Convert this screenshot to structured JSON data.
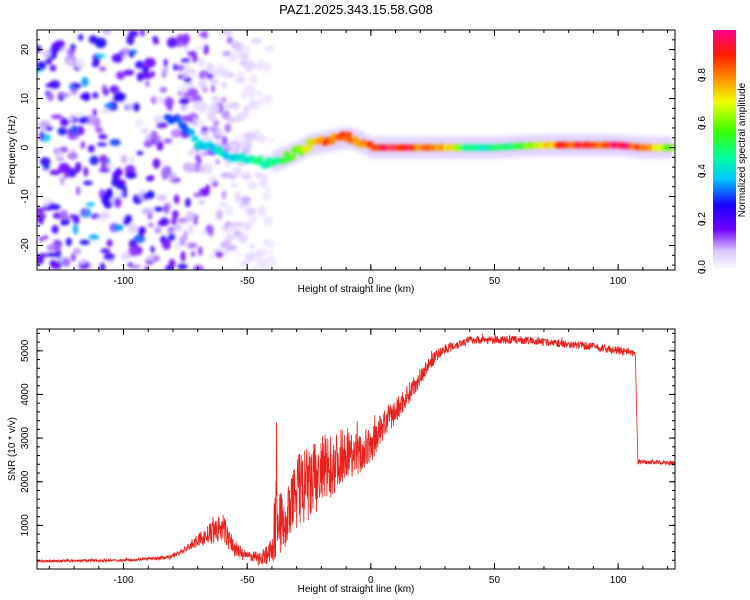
{
  "title": "PAZ1.2025.343.15.58.G08",
  "colorbar": {
    "label": "Normalized spectral amplitude",
    "ticks": [
      "0.0",
      "0.2",
      "0.4",
      "0.6",
      "0.8"
    ],
    "tick_values": [
      0.0,
      0.2,
      0.4,
      0.6,
      0.8
    ],
    "range": [
      0.0,
      1.0
    ]
  },
  "chart_data": [
    {
      "type": "heatmap",
      "name": "spectrogram",
      "xlabel": "Height of straight line (km)",
      "ylabel": "Frequency (Hz)",
      "xlim": [
        -135,
        123
      ],
      "ylim": [
        -25,
        24
      ],
      "xticks": [
        -100,
        -50,
        0,
        50,
        100
      ],
      "xtick_labels": [
        "-100",
        "-50",
        "0",
        "50",
        "100"
      ],
      "yticks": [
        -20,
        -10,
        0,
        10,
        20
      ],
      "ytick_labels": [
        "-20",
        "-10",
        "0",
        "10",
        "20"
      ],
      "ridge": {
        "x": [
          -80,
          -75,
          -70,
          -65,
          -60,
          -55,
          -50,
          -45,
          -40,
          -35,
          -30,
          -25,
          -20,
          -15,
          -10,
          -5,
          0,
          10,
          20,
          30,
          40,
          50,
          60,
          70,
          80,
          90,
          100,
          110,
          120
        ],
        "freq": [
          6,
          4,
          1,
          0,
          -1,
          -2,
          -2,
          -3,
          -3,
          -2,
          -1,
          0.5,
          1,
          1.5,
          2,
          1.5,
          0,
          0,
          0,
          0,
          0,
          0,
          0.3,
          0.5,
          0.5,
          0.5,
          0.5,
          0,
          0
        ],
        "amplitude": [
          0.3,
          0.35,
          0.45,
          0.4,
          0.45,
          0.4,
          0.45,
          0.5,
          0.55,
          0.55,
          0.6,
          0.7,
          0.85,
          0.9,
          0.9,
          0.85,
          0.95,
          0.95,
          0.9,
          0.8,
          0.5,
          0.5,
          0.55,
          0.75,
          0.95,
          0.95,
          0.95,
          0.9,
          0.6
        ]
      },
      "noise_region": [
        -135,
        -40
      ]
    },
    {
      "type": "line",
      "name": "snr",
      "xlabel": "Height of straight line (km)",
      "ylabel": "SNR (10 * v/v)",
      "xlim": [
        -135,
        123
      ],
      "ylim": [
        0,
        5500
      ],
      "xticks": [
        -100,
        -50,
        0,
        50,
        100
      ],
      "xtick_labels": [
        "-100",
        "-50",
        "0",
        "50",
        "100"
      ],
      "yticks": [
        1000,
        2000,
        3000,
        4000,
        5000
      ],
      "ytick_labels": [
        "1000",
        "2000",
        "3000",
        "4000",
        "5000"
      ],
      "color": "#e8231e",
      "series": [
        {
          "name": "SNR",
          "x": [
            -135,
            -120,
            -100,
            -85,
            -80,
            -75,
            -70,
            -65,
            -60,
            -55,
            -50,
            -45,
            -40,
            -38,
            -35,
            -30,
            -25,
            -20,
            -15,
            -10,
            -5,
            0,
            5,
            10,
            15,
            20,
            25,
            30,
            40,
            50,
            60,
            70,
            80,
            90,
            100,
            105,
            107,
            108,
            110,
            115,
            123
          ],
          "y": [
            180,
            190,
            200,
            250,
            300,
            450,
            650,
            800,
            950,
            450,
            300,
            250,
            400,
            1400,
            900,
            1800,
            1900,
            2200,
            2400,
            2700,
            2600,
            2800,
            3300,
            3600,
            4000,
            4400,
            4800,
            5050,
            5250,
            5250,
            5250,
            5200,
            5150,
            5100,
            5000,
            4950,
            4900,
            2450,
            2450,
            2450,
            2420
          ],
          "noise_amplitude": [
            30,
            30,
            30,
            40,
            60,
            80,
            150,
            250,
            350,
            200,
            100,
            150,
            300,
            1200,
            500,
            900,
            900,
            900,
            700,
            600,
            500,
            400,
            350,
            300,
            250,
            200,
            150,
            120,
            90,
            90,
            90,
            90,
            90,
            90,
            90,
            90,
            90,
            60,
            50,
            50,
            50
          ]
        }
      ]
    }
  ]
}
